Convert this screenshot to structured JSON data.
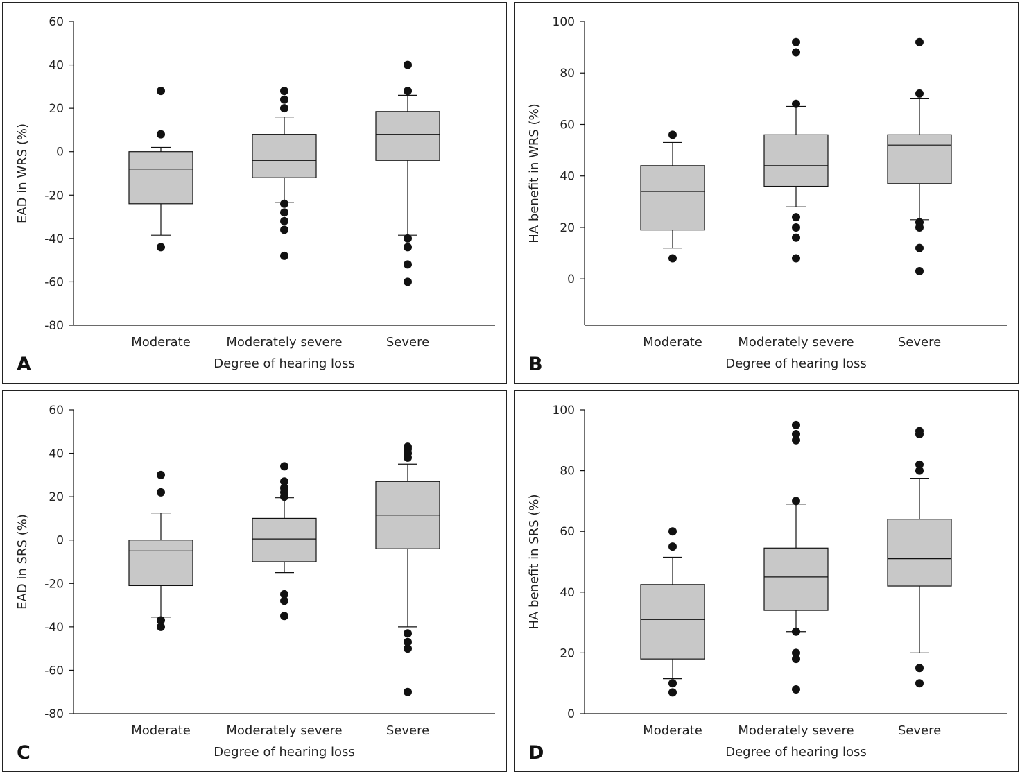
{
  "chart_data": [
    {
      "type": "box",
      "panel": "A",
      "ylabel": "EAD in WRS (%)",
      "xlabel": "Degree of hearing loss",
      "categories": [
        "Moderate",
        "Moderately severe",
        "Severe"
      ],
      "ylim": [
        -80,
        60
      ],
      "yticks": [
        60,
        40,
        20,
        0,
        -20,
        -40,
        -60,
        -80
      ],
      "boxes": [
        {
          "q1": -24,
          "median": -8,
          "q3": 0,
          "whisker_low": -38.5,
          "whisker_high": 2,
          "outliers": [
            28,
            8,
            -44
          ]
        },
        {
          "q1": -12,
          "median": -4,
          "q3": 8,
          "whisker_low": -23.5,
          "whisker_high": 16,
          "outliers": [
            28,
            24,
            20,
            -24,
            -28,
            -32,
            -36,
            -48
          ]
        },
        {
          "q1": -4,
          "median": 8,
          "q3": 18.5,
          "whisker_low": -38.5,
          "whisker_high": 26,
          "outliers": [
            40,
            28,
            -40,
            -44,
            -52,
            -60
          ]
        }
      ]
    },
    {
      "type": "box",
      "panel": "B",
      "ylabel": "HA benefit in WRS (%)",
      "xlabel": "Degree of hearing loss",
      "categories": [
        "Moderate",
        "Moderately severe",
        "Severe"
      ],
      "ylim": [
        -18,
        100
      ],
      "yticks": [
        100,
        80,
        60,
        40,
        20,
        0
      ],
      "boxes": [
        {
          "q1": 19,
          "median": 34,
          "q3": 44,
          "whisker_low": 12,
          "whisker_high": 53,
          "outliers": [
            56,
            8
          ]
        },
        {
          "q1": 36,
          "median": 44,
          "q3": 56,
          "whisker_low": 28,
          "whisker_high": 67,
          "outliers": [
            92,
            88,
            68,
            24,
            20,
            16,
            8
          ]
        },
        {
          "q1": 37,
          "median": 52,
          "q3": 56,
          "whisker_low": 23,
          "whisker_high": 70,
          "outliers": [
            92,
            72,
            22,
            20,
            12,
            3
          ]
        }
      ]
    },
    {
      "type": "box",
      "panel": "C",
      "ylabel": "EAD in SRS (%)",
      "xlabel": "Degree of hearing loss",
      "categories": [
        "Moderate",
        "Moderately severe",
        "Severe"
      ],
      "ylim": [
        -80,
        60
      ],
      "yticks": [
        60,
        40,
        20,
        0,
        -20,
        -40,
        -60,
        -80
      ],
      "boxes": [
        {
          "q1": -21,
          "median": -5,
          "q3": 0,
          "whisker_low": -35.5,
          "whisker_high": 12.5,
          "outliers": [
            30,
            22,
            -37,
            -40
          ]
        },
        {
          "q1": -10,
          "median": 0.5,
          "q3": 10,
          "whisker_low": -15,
          "whisker_high": 19.5,
          "outliers": [
            34,
            27,
            24,
            22,
            20,
            -25,
            -28,
            -35
          ]
        },
        {
          "q1": -4,
          "median": 11.5,
          "q3": 27,
          "whisker_low": -40,
          "whisker_high": 35,
          "outliers": [
            43,
            42,
            40,
            38,
            -43,
            -47,
            -50,
            -70
          ]
        }
      ]
    },
    {
      "type": "box",
      "panel": "D",
      "ylabel": "HA benefit in SRS (%)",
      "xlabel": "Degree of hearing loss",
      "categories": [
        "Moderate",
        "Moderately severe",
        "Severe"
      ],
      "ylim": [
        0,
        100
      ],
      "yticks": [
        100,
        80,
        60,
        40,
        20,
        0
      ],
      "boxes": [
        {
          "q1": 18,
          "median": 31,
          "q3": 42.5,
          "whisker_low": 11.5,
          "whisker_high": 51.5,
          "outliers": [
            60,
            55,
            10,
            7
          ]
        },
        {
          "q1": 34,
          "median": 45,
          "q3": 54.5,
          "whisker_low": 27,
          "whisker_high": 69,
          "outliers": [
            95,
            92,
            90,
            70,
            27,
            20,
            18,
            8
          ]
        },
        {
          "q1": 42,
          "median": 51,
          "q3": 64,
          "whisker_low": 20,
          "whisker_high": 77.5,
          "outliers": [
            93,
            92,
            82,
            80,
            15,
            10
          ]
        }
      ]
    }
  ]
}
